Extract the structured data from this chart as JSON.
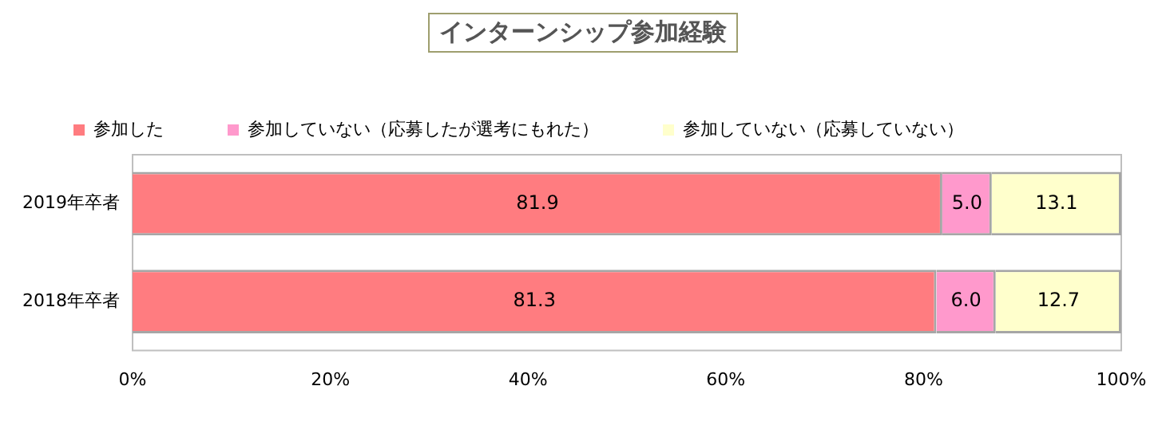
{
  "chart_data": {
    "type": "bar",
    "orientation": "horizontal",
    "stacked": true,
    "title": "インターンシップ参加経験",
    "categories": [
      "2019年卒者",
      "2018年卒者"
    ],
    "series": [
      {
        "name": "参加した",
        "color": "#ff7c80",
        "values": [
          81.9,
          81.3
        ]
      },
      {
        "name": "参加していない（応募したが選考にもれた）",
        "color": "#ff99cc",
        "values": [
          5.0,
          6.0
        ]
      },
      {
        "name": "参加していない（応募していない）",
        "color": "#ffffcc",
        "values": [
          13.1,
          12.7
        ]
      }
    ],
    "value_labels": [
      [
        "81.9",
        "81.3"
      ],
      [
        "5.0",
        "6.0"
      ],
      [
        "13.1",
        "12.7"
      ]
    ],
    "xlim": [
      0,
      100
    ],
    "xticks": [
      {
        "value": 0,
        "label": "0%"
      },
      {
        "value": 20,
        "label": "20%"
      },
      {
        "value": 40,
        "label": "40%"
      },
      {
        "value": 60,
        "label": "60%"
      },
      {
        "value": 80,
        "label": "80%"
      },
      {
        "value": 100,
        "label": "100%"
      }
    ],
    "grid": false,
    "legend": "top"
  }
}
